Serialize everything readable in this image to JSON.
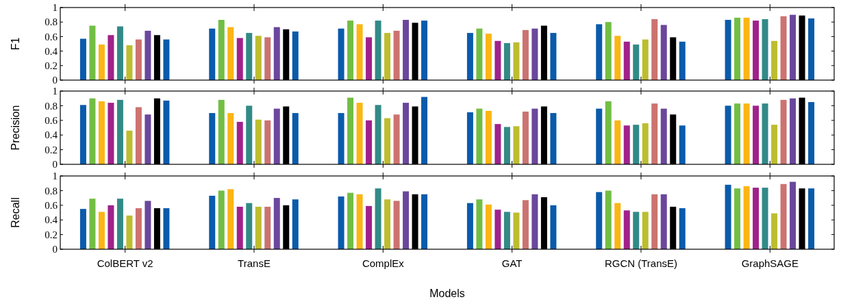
{
  "chart_data": [
    {
      "type": "bar",
      "ylabel": "F1",
      "ylim": [
        0,
        1
      ],
      "yticks": [
        0,
        0.2,
        0.4,
        0.6,
        0.8,
        1
      ],
      "tick_labels": "y",
      "series": [
        {
          "color": "#0a5bab",
          "values": [
            0.57,
            0.71,
            0.71,
            0.65,
            0.77,
            0.83
          ]
        },
        {
          "color": "#72be44",
          "values": [
            0.75,
            0.83,
            0.82,
            0.71,
            0.8,
            0.86
          ]
        },
        {
          "color": "#fcb514",
          "values": [
            0.49,
            0.73,
            0.77,
            0.64,
            0.61,
            0.86
          ]
        },
        {
          "color": "#a0218b",
          "values": [
            0.62,
            0.58,
            0.59,
            0.54,
            0.53,
            0.82
          ]
        },
        {
          "color": "#328a87",
          "values": [
            0.74,
            0.65,
            0.82,
            0.51,
            0.49,
            0.84
          ]
        },
        {
          "color": "#bdbd2f",
          "values": [
            0.48,
            0.61,
            0.65,
            0.52,
            0.56,
            0.54
          ]
        },
        {
          "color": "#cc7370",
          "values": [
            0.56,
            0.59,
            0.68,
            0.69,
            0.84,
            0.88
          ]
        },
        {
          "color": "#6a479c",
          "values": [
            0.68,
            0.73,
            0.83,
            0.71,
            0.76,
            0.9
          ]
        },
        {
          "color": "#000000",
          "values": [
            0.62,
            0.7,
            0.79,
            0.75,
            0.59,
            0.89
          ]
        },
        {
          "color": "#0a5bab",
          "values": [
            0.56,
            0.67,
            0.82,
            0.65,
            0.53,
            0.85
          ]
        }
      ]
    },
    {
      "type": "bar",
      "ylabel": "Precision",
      "ylim": [
        0,
        1
      ],
      "yticks": [
        0,
        0.2,
        0.4,
        0.6,
        0.8,
        1
      ],
      "tick_labels": "y",
      "series": [
        {
          "color": "#0a5bab",
          "values": [
            0.81,
            0.7,
            0.7,
            0.71,
            0.76,
            0.8
          ]
        },
        {
          "color": "#72be44",
          "values": [
            0.9,
            0.88,
            0.91,
            0.76,
            0.86,
            0.83
          ]
        },
        {
          "color": "#fcb514",
          "values": [
            0.86,
            0.7,
            0.84,
            0.73,
            0.6,
            0.83
          ]
        },
        {
          "color": "#a0218b",
          "values": [
            0.84,
            0.58,
            0.6,
            0.55,
            0.53,
            0.8
          ]
        },
        {
          "color": "#328a87",
          "values": [
            0.88,
            0.8,
            0.81,
            0.51,
            0.54,
            0.83
          ]
        },
        {
          "color": "#bdbd2f",
          "values": [
            0.46,
            0.61,
            0.63,
            0.52,
            0.56,
            0.54
          ]
        },
        {
          "color": "#cc7370",
          "values": [
            0.78,
            0.6,
            0.68,
            0.72,
            0.83,
            0.88
          ]
        },
        {
          "color": "#6a479c",
          "values": [
            0.68,
            0.76,
            0.84,
            0.76,
            0.76,
            0.9
          ]
        },
        {
          "color": "#000000",
          "values": [
            0.9,
            0.79,
            0.79,
            0.79,
            0.68,
            0.91
          ]
        },
        {
          "color": "#0a5bab",
          "values": [
            0.87,
            0.7,
            0.92,
            0.7,
            0.53,
            0.85
          ]
        }
      ]
    },
    {
      "type": "bar",
      "ylabel": "Recall",
      "xlabel": "Models",
      "categories": [
        "ColBERT v2",
        "TransE",
        "ComplEx",
        "GAT",
        "RGCN (TransE)",
        "GraphSAGE"
      ],
      "ylim": [
        0,
        1
      ],
      "yticks": [
        0,
        0.2,
        0.4,
        0.6,
        0.8,
        1
      ],
      "series": [
        {
          "color": "#0a5bab",
          "values": [
            0.55,
            0.73,
            0.72,
            0.63,
            0.78,
            0.88
          ]
        },
        {
          "color": "#72be44",
          "values": [
            0.69,
            0.8,
            0.77,
            0.68,
            0.8,
            0.83
          ]
        },
        {
          "color": "#fcb514",
          "values": [
            0.51,
            0.82,
            0.75,
            0.61,
            0.63,
            0.86
          ]
        },
        {
          "color": "#a0218b",
          "values": [
            0.6,
            0.58,
            0.59,
            0.54,
            0.53,
            0.84
          ]
        },
        {
          "color": "#328a87",
          "values": [
            0.69,
            0.63,
            0.83,
            0.51,
            0.51,
            0.84
          ]
        },
        {
          "color": "#bdbd2f",
          "values": [
            0.46,
            0.58,
            0.68,
            0.5,
            0.51,
            0.49
          ]
        },
        {
          "color": "#cc7370",
          "values": [
            0.56,
            0.58,
            0.66,
            0.67,
            0.75,
            0.89
          ]
        },
        {
          "color": "#6a479c",
          "values": [
            0.66,
            0.7,
            0.79,
            0.75,
            0.75,
            0.92
          ]
        },
        {
          "color": "#000000",
          "values": [
            0.56,
            0.6,
            0.75,
            0.71,
            0.58,
            0.83
          ]
        },
        {
          "color": "#0a5bab",
          "values": [
            0.56,
            0.68,
            0.75,
            0.6,
            0.56,
            0.83
          ]
        }
      ]
    }
  ]
}
